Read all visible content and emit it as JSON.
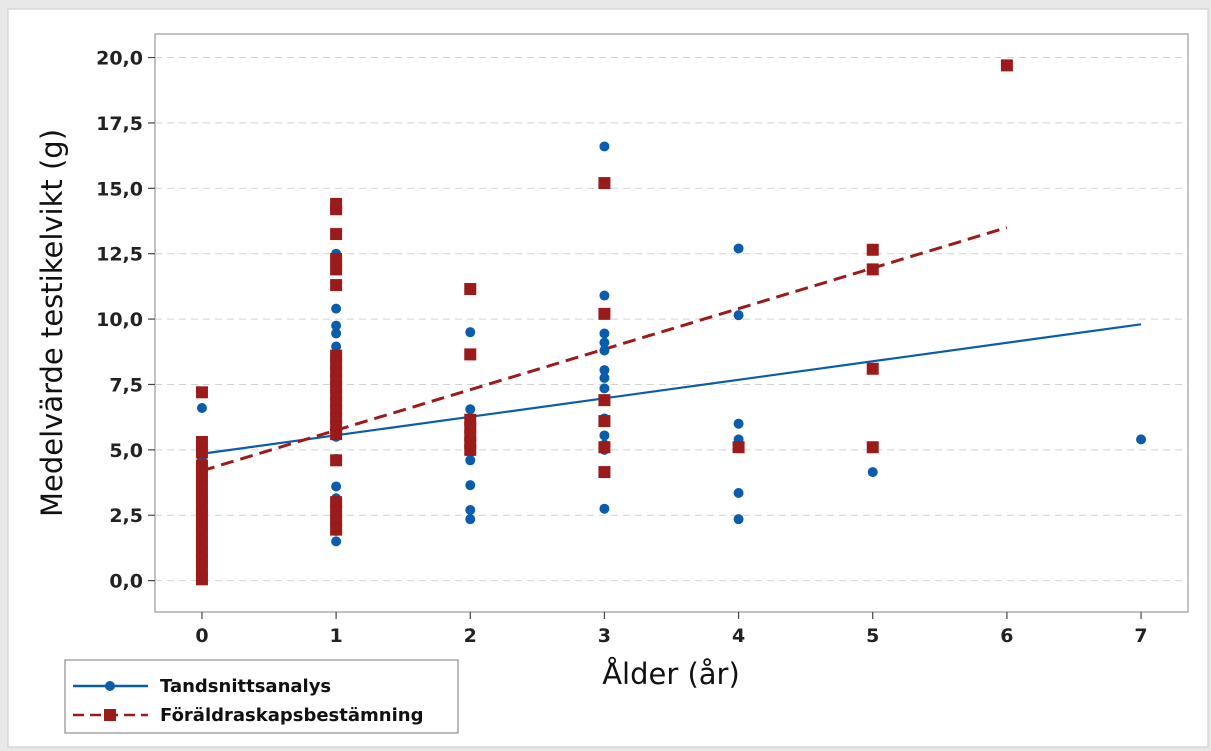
{
  "chart_data": {
    "type": "scatter",
    "xlabel": "Ålder (år)",
    "ylabel": "Medelvärde testikelvikt (g)",
    "xlim": [
      -0.35,
      7.35
    ],
    "ylim": [
      -1.2,
      20.9
    ],
    "xticks": [
      "0",
      "1",
      "2",
      "3",
      "4",
      "5",
      "6",
      "7"
    ],
    "xtick_values": [
      0,
      1,
      2,
      3,
      4,
      5,
      6,
      7
    ],
    "yticks": [
      "0,0",
      "2,5",
      "5,0",
      "7,5",
      "10,0",
      "12,5",
      "15,0",
      "17,5",
      "20,0"
    ],
    "ytick_values": [
      0,
      2.5,
      5,
      7.5,
      10,
      12.5,
      15,
      17.5,
      20
    ],
    "grid": "horizontal dashed",
    "legend_position": "bottom-left",
    "series": [
      {
        "name": "Tandsnittsanalys",
        "color": "#0a5cad",
        "marker": "circle",
        "line_style": "solid",
        "fit_line": [
          [
            0,
            4.85
          ],
          [
            7,
            9.8
          ]
        ],
        "points": [
          [
            0,
            6.6
          ],
          [
            0,
            5.1
          ],
          [
            0,
            4.6
          ],
          [
            0,
            2.6
          ],
          [
            1,
            12.5
          ],
          [
            1,
            12.4
          ],
          [
            1,
            12.3
          ],
          [
            1,
            11.3
          ],
          [
            1,
            10.4
          ],
          [
            1,
            9.75
          ],
          [
            1,
            9.45
          ],
          [
            1,
            8.95
          ],
          [
            1,
            8.6
          ],
          [
            1,
            8.2
          ],
          [
            1,
            7.9
          ],
          [
            1,
            7.6
          ],
          [
            1,
            7.3
          ],
          [
            1,
            6.9
          ],
          [
            1,
            6.4
          ],
          [
            1,
            6.0
          ],
          [
            1,
            5.7
          ],
          [
            1,
            5.5
          ],
          [
            1,
            4.65
          ],
          [
            1,
            3.6
          ],
          [
            1,
            3.15
          ],
          [
            1,
            3.0
          ],
          [
            1,
            2.85
          ],
          [
            1,
            2.6
          ],
          [
            1,
            2.3
          ],
          [
            1,
            1.9
          ],
          [
            1,
            1.5
          ],
          [
            2,
            9.5
          ],
          [
            2,
            6.55
          ],
          [
            2,
            6.0
          ],
          [
            2,
            5.4
          ],
          [
            2,
            4.9
          ],
          [
            2,
            4.6
          ],
          [
            2,
            3.65
          ],
          [
            2,
            2.7
          ],
          [
            2,
            2.35
          ],
          [
            3,
            16.6
          ],
          [
            3,
            10.9
          ],
          [
            3,
            9.45
          ],
          [
            3,
            9.1
          ],
          [
            3,
            8.8
          ],
          [
            3,
            8.05
          ],
          [
            3,
            7.75
          ],
          [
            3,
            7.35
          ],
          [
            3,
            6.2
          ],
          [
            3,
            5.55
          ],
          [
            3,
            5.2
          ],
          [
            3,
            5.0
          ],
          [
            3,
            2.75
          ],
          [
            4,
            12.7
          ],
          [
            4,
            10.15
          ],
          [
            4,
            6.0
          ],
          [
            4,
            5.4
          ],
          [
            4,
            3.35
          ],
          [
            4,
            2.35
          ],
          [
            5,
            4.15
          ],
          [
            7,
            5.4
          ]
        ]
      },
      {
        "name": "Föräldraskapsbestämning",
        "color": "#9b1b1b",
        "marker": "square",
        "line_style": "dashed",
        "fit_line": [
          [
            0,
            4.2
          ],
          [
            6,
            13.5
          ]
        ],
        "points": [
          [
            0,
            7.2
          ],
          [
            0,
            5.3
          ],
          [
            0,
            4.9
          ],
          [
            0,
            4.4
          ],
          [
            0,
            4.0
          ],
          [
            0,
            3.6
          ],
          [
            0,
            3.2
          ],
          [
            0,
            2.85
          ],
          [
            0,
            2.5
          ],
          [
            0,
            2.15
          ],
          [
            0,
            1.8
          ],
          [
            0,
            1.45
          ],
          [
            0,
            1.1
          ],
          [
            0,
            0.75
          ],
          [
            0,
            0.4
          ],
          [
            0,
            0.05
          ],
          [
            1,
            14.4
          ],
          [
            1,
            14.2
          ],
          [
            1,
            13.25
          ],
          [
            1,
            12.3
          ],
          [
            1,
            11.9
          ],
          [
            1,
            11.3
          ],
          [
            1,
            8.6
          ],
          [
            1,
            8.3
          ],
          [
            1,
            8.0
          ],
          [
            1,
            7.7
          ],
          [
            1,
            7.4
          ],
          [
            1,
            7.1
          ],
          [
            1,
            6.8
          ],
          [
            1,
            6.5
          ],
          [
            1,
            6.2
          ],
          [
            1,
            5.9
          ],
          [
            1,
            5.6
          ],
          [
            1,
            4.6
          ],
          [
            1,
            3.0
          ],
          [
            1,
            2.65
          ],
          [
            1,
            2.3
          ],
          [
            1,
            1.95
          ],
          [
            2,
            11.15
          ],
          [
            2,
            8.65
          ],
          [
            2,
            6.15
          ],
          [
            2,
            5.85
          ],
          [
            2,
            5.55
          ],
          [
            2,
            5.25
          ],
          [
            2,
            5.0
          ],
          [
            3,
            15.2
          ],
          [
            3,
            10.2
          ],
          [
            3,
            6.9
          ],
          [
            3,
            6.1
          ],
          [
            3,
            5.1
          ],
          [
            3,
            4.15
          ],
          [
            4,
            5.1
          ],
          [
            5,
            12.65
          ],
          [
            5,
            11.9
          ],
          [
            5,
            8.1
          ],
          [
            5,
            5.1
          ],
          [
            6,
            19.7
          ]
        ]
      }
    ]
  }
}
